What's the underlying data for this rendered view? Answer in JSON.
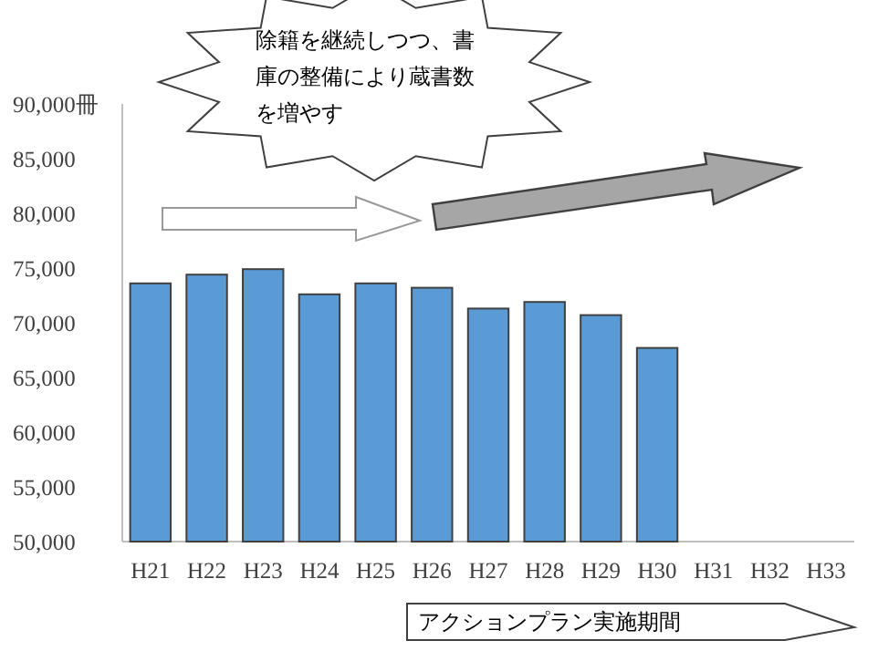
{
  "chart_data": {
    "type": "bar",
    "categories": [
      "H21",
      "H22",
      "H23",
      "H24",
      "H25",
      "H26",
      "H27",
      "H28",
      "H29",
      "H30",
      "H31",
      "H32",
      "H33"
    ],
    "values": [
      73600,
      74400,
      74900,
      72600,
      73600,
      73200,
      71300,
      71900,
      70700,
      67700,
      null,
      null,
      null
    ],
    "color": "#5b9bd5",
    "ylim": [
      50000,
      90000
    ],
    "yticks": [
      {
        "value": 50000,
        "label": "50,000"
      },
      {
        "value": 55000,
        "label": "55,000"
      },
      {
        "value": 60000,
        "label": "60,000"
      },
      {
        "value": 65000,
        "label": "65,000"
      },
      {
        "value": 70000,
        "label": "70,000"
      },
      {
        "value": 75000,
        "label": "75,000"
      },
      {
        "value": 80000,
        "label": "80,000"
      },
      {
        "value": 85000,
        "label": "85,000"
      },
      {
        "value": 90000,
        "label": "90,000冊"
      }
    ],
    "annotations": [
      "除籍を継続しつつ、書庫の整備により蔵書数を増やす",
      "アクションプラン実施期間"
    ],
    "grid": false
  }
}
